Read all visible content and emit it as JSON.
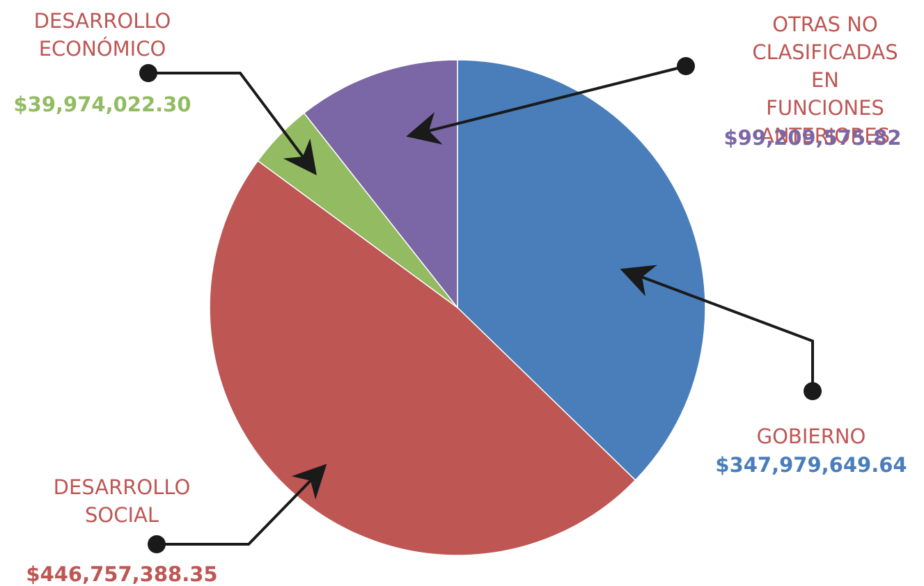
{
  "chart_data": {
    "type": "pie",
    "categories": [
      "GOBIERNO",
      "DESARROLLO\nSOCIAL",
      "DESARROLLO\nECONÓMICO",
      "OTRAS NO\nCLASIFICADAS\nEN FUNCIONES\nANTERIORES"
    ],
    "values": [
      347979649.64,
      446757388.35,
      39974022.3,
      99209575.82
    ],
    "value_labels": [
      "$347,979,649.64",
      "$446,757,388.35",
      "$39,974,022.30",
      "$99,209,575.82"
    ],
    "colors": [
      "#4a7ebb",
      "#be5654",
      "#93bb62",
      "#7b66a6"
    ]
  }
}
